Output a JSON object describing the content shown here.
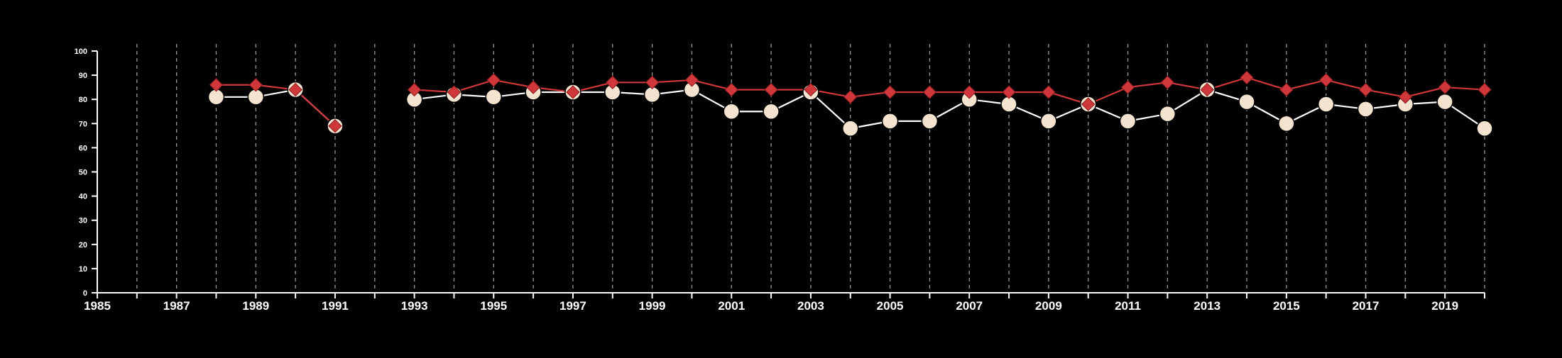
{
  "chart_data": {
    "type": "line",
    "title": "",
    "xlabel": "",
    "ylabel": "",
    "xlim": [
      1985,
      2020
    ],
    "ylim": [
      0,
      100
    ],
    "x_ticks": [
      1985,
      1987,
      1989,
      1991,
      1993,
      1995,
      1997,
      1999,
      2001,
      2003,
      2005,
      2007,
      2009,
      2011,
      2013,
      2015,
      2017,
      2019
    ],
    "y_ticks": [
      0,
      10,
      20,
      30,
      40,
      50,
      60,
      70,
      80,
      90,
      100
    ],
    "grid": "vertical dashed lines at every year",
    "background": "#000000",
    "series": [
      {
        "marker": "circle",
        "color": "#FFFFFF",
        "marker_fill": "#F3E3CF",
        "points": [
          [
            1988,
            81
          ],
          [
            1989,
            81
          ],
          [
            1990,
            84
          ],
          [
            1991,
            69
          ],
          [
            1993,
            80
          ],
          [
            1994,
            82
          ],
          [
            1995,
            81
          ],
          [
            1996,
            83
          ],
          [
            1997,
            83
          ],
          [
            1998,
            83
          ],
          [
            1999,
            82
          ],
          [
            2000,
            84
          ],
          [
            2001,
            75
          ],
          [
            2002,
            75
          ],
          [
            2003,
            83
          ],
          [
            2004,
            68
          ],
          [
            2005,
            71
          ],
          [
            2006,
            71
          ],
          [
            2007,
            80
          ],
          [
            2008,
            78
          ],
          [
            2009,
            71
          ],
          [
            2010,
            78
          ],
          [
            2011,
            71
          ],
          [
            2012,
            74
          ],
          [
            2013,
            84
          ],
          [
            2014,
            79
          ],
          [
            2015,
            70
          ],
          [
            2016,
            78
          ],
          [
            2017,
            76
          ],
          [
            2018,
            78
          ],
          [
            2019,
            79
          ],
          [
            2020,
            68
          ]
        ]
      },
      {
        "marker": "diamond",
        "color": "#D0373A",
        "marker_fill": "#D0373A",
        "points": [
          [
            1988,
            86
          ],
          [
            1989,
            86
          ],
          [
            1990,
            84
          ],
          [
            1991,
            69
          ],
          [
            1993,
            84
          ],
          [
            1994,
            83
          ],
          [
            1995,
            88
          ],
          [
            1996,
            85
          ],
          [
            1997,
            83
          ],
          [
            1998,
            87
          ],
          [
            1999,
            87
          ],
          [
            2000,
            88
          ],
          [
            2001,
            84
          ],
          [
            2002,
            84
          ],
          [
            2003,
            84
          ],
          [
            2004,
            81
          ],
          [
            2005,
            83
          ],
          [
            2006,
            83
          ],
          [
            2007,
            83
          ],
          [
            2008,
            83
          ],
          [
            2009,
            83
          ],
          [
            2010,
            78
          ],
          [
            2011,
            85
          ],
          [
            2012,
            87
          ],
          [
            2013,
            84
          ],
          [
            2014,
            89
          ],
          [
            2015,
            84
          ],
          [
            2016,
            88
          ],
          [
            2017,
            84
          ],
          [
            2018,
            81
          ],
          [
            2019,
            85
          ],
          [
            2020,
            84
          ]
        ]
      }
    ]
  }
}
